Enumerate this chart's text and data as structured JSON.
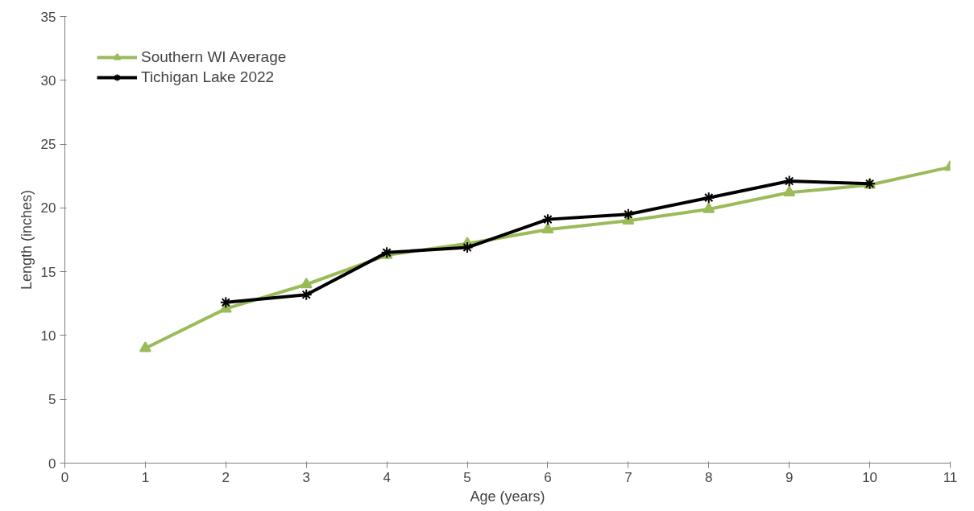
{
  "chart_data": {
    "type": "line",
    "xlabel": "Age (years)",
    "ylabel": "Length (inches)",
    "xlim": [
      0,
      11
    ],
    "xticks": [
      0,
      1,
      2,
      3,
      4,
      5,
      6,
      7,
      8,
      9,
      10,
      11
    ],
    "ylim": [
      0,
      35
    ],
    "yticks": [
      0,
      5,
      10,
      15,
      20,
      25,
      30,
      35
    ],
    "grid": false,
    "legend": "top left",
    "series": [
      {
        "name": "Southern WI Average",
        "color": "#9bbb59",
        "marker": "triangle",
        "x": [
          1,
          2,
          3,
          4,
          5,
          6,
          7,
          8,
          9,
          10,
          11
        ],
        "values": [
          9.0,
          12.1,
          14.0,
          16.3,
          17.2,
          18.3,
          19.0,
          19.9,
          21.2,
          21.8,
          23.2
        ]
      },
      {
        "name": "Tichigan Lake 2022",
        "color": "#000000",
        "marker": "cross",
        "x": [
          2,
          3,
          4,
          5,
          6,
          7,
          8,
          9,
          10
        ],
        "values": [
          12.6,
          13.2,
          16.5,
          16.9,
          19.1,
          19.5,
          20.8,
          22.1,
          21.9
        ]
      }
    ]
  }
}
